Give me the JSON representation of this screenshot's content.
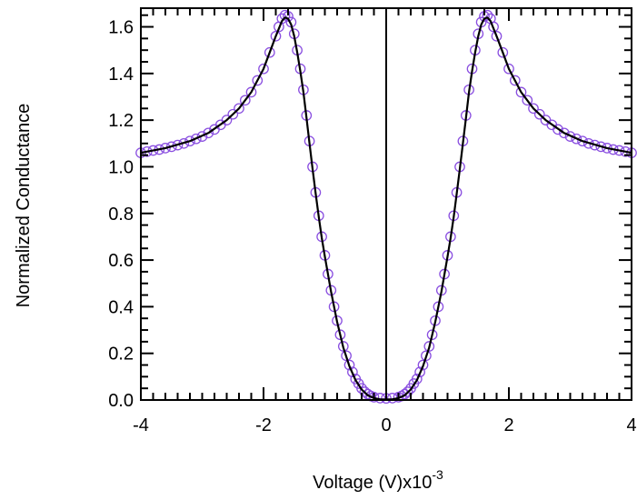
{
  "chart_data": {
    "type": "scatter",
    "xlabel": "Voltage (V)x10",
    "xlabel_exponent": "-3",
    "ylabel": "Normalized Conductance",
    "xlim": [
      -4,
      4
    ],
    "ylim": [
      0,
      1.68
    ],
    "x_ticks": [
      -4,
      -2,
      0,
      2,
      4
    ],
    "x_tick_labels": [
      "-4",
      "-2",
      "0",
      "2",
      "4"
    ],
    "y_ticks": [
      0.0,
      0.2,
      0.4,
      0.6,
      0.8,
      1.0,
      1.2,
      1.4,
      1.6
    ],
    "y_tick_labels": [
      "0.0",
      "0.2",
      "0.4",
      "0.6",
      "0.8",
      "1.0",
      "1.2",
      "1.4",
      "1.6"
    ],
    "grid": false,
    "zero_line": true,
    "series": [
      {
        "kind": "markers",
        "marker": "open-circle",
        "color": "#8a4fe0",
        "points": [
          [
            -4.0,
            1.06
          ],
          [
            -3.9,
            1.065
          ],
          [
            -3.8,
            1.07
          ],
          [
            -3.7,
            1.074
          ],
          [
            -3.6,
            1.08
          ],
          [
            -3.5,
            1.086
          ],
          [
            -3.4,
            1.093
          ],
          [
            -3.3,
            1.1
          ],
          [
            -3.2,
            1.11
          ],
          [
            -3.1,
            1.12
          ],
          [
            -3.0,
            1.13
          ],
          [
            -2.9,
            1.145
          ],
          [
            -2.8,
            1.16
          ],
          [
            -2.7,
            1.18
          ],
          [
            -2.6,
            1.2
          ],
          [
            -2.5,
            1.225
          ],
          [
            -2.4,
            1.25
          ],
          [
            -2.3,
            1.285
          ],
          [
            -2.2,
            1.32
          ],
          [
            -2.1,
            1.37
          ],
          [
            -2.0,
            1.42
          ],
          [
            -1.9,
            1.49
          ],
          [
            -1.8,
            1.56
          ],
          [
            -1.75,
            1.6
          ],
          [
            -1.7,
            1.635
          ],
          [
            -1.65,
            1.65
          ],
          [
            -1.6,
            1.645
          ],
          [
            -1.55,
            1.62
          ],
          [
            -1.5,
            1.57
          ],
          [
            -1.45,
            1.5
          ],
          [
            -1.4,
            1.42
          ],
          [
            -1.35,
            1.33
          ],
          [
            -1.3,
            1.22
          ],
          [
            -1.25,
            1.11
          ],
          [
            -1.2,
            1.0
          ],
          [
            -1.15,
            0.89
          ],
          [
            -1.1,
            0.79
          ],
          [
            -1.05,
            0.7
          ],
          [
            -1.0,
            0.62
          ],
          [
            -0.95,
            0.54
          ],
          [
            -0.9,
            0.47
          ],
          [
            -0.85,
            0.4
          ],
          [
            -0.8,
            0.34
          ],
          [
            -0.75,
            0.28
          ],
          [
            -0.7,
            0.23
          ],
          [
            -0.65,
            0.19
          ],
          [
            -0.6,
            0.15
          ],
          [
            -0.55,
            0.12
          ],
          [
            -0.5,
            0.09
          ],
          [
            -0.45,
            0.07
          ],
          [
            -0.4,
            0.05
          ],
          [
            -0.35,
            0.035
          ],
          [
            -0.3,
            0.025
          ],
          [
            -0.25,
            0.017
          ],
          [
            -0.2,
            0.012
          ],
          [
            -0.1,
            0.008
          ],
          [
            0.0,
            0.007
          ],
          [
            0.1,
            0.008
          ],
          [
            0.2,
            0.012
          ],
          [
            0.25,
            0.017
          ],
          [
            0.3,
            0.025
          ],
          [
            0.35,
            0.035
          ],
          [
            0.4,
            0.05
          ],
          [
            0.45,
            0.07
          ],
          [
            0.5,
            0.09
          ],
          [
            0.55,
            0.12
          ],
          [
            0.6,
            0.15
          ],
          [
            0.65,
            0.19
          ],
          [
            0.7,
            0.23
          ],
          [
            0.75,
            0.28
          ],
          [
            0.8,
            0.34
          ],
          [
            0.85,
            0.4
          ],
          [
            0.9,
            0.47
          ],
          [
            0.95,
            0.54
          ],
          [
            1.0,
            0.62
          ],
          [
            1.05,
            0.7
          ],
          [
            1.1,
            0.79
          ],
          [
            1.15,
            0.89
          ],
          [
            1.2,
            1.0
          ],
          [
            1.25,
            1.11
          ],
          [
            1.3,
            1.22
          ],
          [
            1.35,
            1.33
          ],
          [
            1.4,
            1.42
          ],
          [
            1.45,
            1.5
          ],
          [
            1.5,
            1.57
          ],
          [
            1.55,
            1.62
          ],
          [
            1.6,
            1.645
          ],
          [
            1.65,
            1.65
          ],
          [
            1.7,
            1.635
          ],
          [
            1.75,
            1.6
          ],
          [
            1.8,
            1.56
          ],
          [
            1.9,
            1.49
          ],
          [
            2.0,
            1.42
          ],
          [
            2.1,
            1.37
          ],
          [
            2.2,
            1.32
          ],
          [
            2.3,
            1.285
          ],
          [
            2.4,
            1.25
          ],
          [
            2.5,
            1.225
          ],
          [
            2.6,
            1.2
          ],
          [
            2.7,
            1.18
          ],
          [
            2.8,
            1.16
          ],
          [
            2.9,
            1.145
          ],
          [
            3.0,
            1.13
          ],
          [
            3.1,
            1.12
          ],
          [
            3.2,
            1.11
          ],
          [
            3.3,
            1.1
          ],
          [
            3.4,
            1.093
          ],
          [
            3.5,
            1.086
          ],
          [
            3.6,
            1.08
          ],
          [
            3.7,
            1.074
          ],
          [
            3.8,
            1.07
          ],
          [
            3.9,
            1.065
          ],
          [
            4.0,
            1.06
          ]
        ]
      },
      {
        "kind": "line",
        "color": "#000000",
        "points": [
          [
            -4.0,
            1.06
          ],
          [
            -3.6,
            1.08
          ],
          [
            -3.2,
            1.11
          ],
          [
            -2.9,
            1.145
          ],
          [
            -2.6,
            1.2
          ],
          [
            -2.4,
            1.25
          ],
          [
            -2.2,
            1.32
          ],
          [
            -2.0,
            1.42
          ],
          [
            -1.9,
            1.49
          ],
          [
            -1.8,
            1.56
          ],
          [
            -1.7,
            1.625
          ],
          [
            -1.65,
            1.64
          ],
          [
            -1.6,
            1.635
          ],
          [
            -1.55,
            1.61
          ],
          [
            -1.5,
            1.56
          ],
          [
            -1.45,
            1.49
          ],
          [
            -1.4,
            1.41
          ],
          [
            -1.35,
            1.32
          ],
          [
            -1.3,
            1.21
          ],
          [
            -1.25,
            1.1
          ],
          [
            -1.2,
            0.99
          ],
          [
            -1.15,
            0.885
          ],
          [
            -1.1,
            0.785
          ],
          [
            -1.05,
            0.695
          ],
          [
            -1.0,
            0.615
          ],
          [
            -0.9,
            0.465
          ],
          [
            -0.8,
            0.335
          ],
          [
            -0.7,
            0.225
          ],
          [
            -0.6,
            0.145
          ],
          [
            -0.5,
            0.085
          ],
          [
            -0.4,
            0.045
          ],
          [
            -0.3,
            0.02
          ],
          [
            -0.2,
            0.008
          ],
          [
            -0.1,
            0.003
          ],
          [
            0.0,
            0.002
          ],
          [
            0.1,
            0.003
          ],
          [
            0.2,
            0.008
          ],
          [
            0.3,
            0.02
          ],
          [
            0.4,
            0.045
          ],
          [
            0.5,
            0.085
          ],
          [
            0.6,
            0.145
          ],
          [
            0.7,
            0.225
          ],
          [
            0.8,
            0.335
          ],
          [
            0.9,
            0.465
          ],
          [
            1.0,
            0.615
          ],
          [
            1.05,
            0.695
          ],
          [
            1.1,
            0.785
          ],
          [
            1.15,
            0.885
          ],
          [
            1.2,
            0.99
          ],
          [
            1.25,
            1.1
          ],
          [
            1.3,
            1.21
          ],
          [
            1.35,
            1.32
          ],
          [
            1.4,
            1.41
          ],
          [
            1.45,
            1.49
          ],
          [
            1.5,
            1.56
          ],
          [
            1.55,
            1.61
          ],
          [
            1.6,
            1.635
          ],
          [
            1.65,
            1.64
          ],
          [
            1.7,
            1.625
          ],
          [
            1.8,
            1.56
          ],
          [
            1.9,
            1.49
          ],
          [
            2.0,
            1.42
          ],
          [
            2.2,
            1.32
          ],
          [
            2.4,
            1.25
          ],
          [
            2.6,
            1.2
          ],
          [
            2.9,
            1.145
          ],
          [
            3.2,
            1.11
          ],
          [
            3.6,
            1.08
          ],
          [
            4.0,
            1.06
          ]
        ]
      }
    ]
  }
}
